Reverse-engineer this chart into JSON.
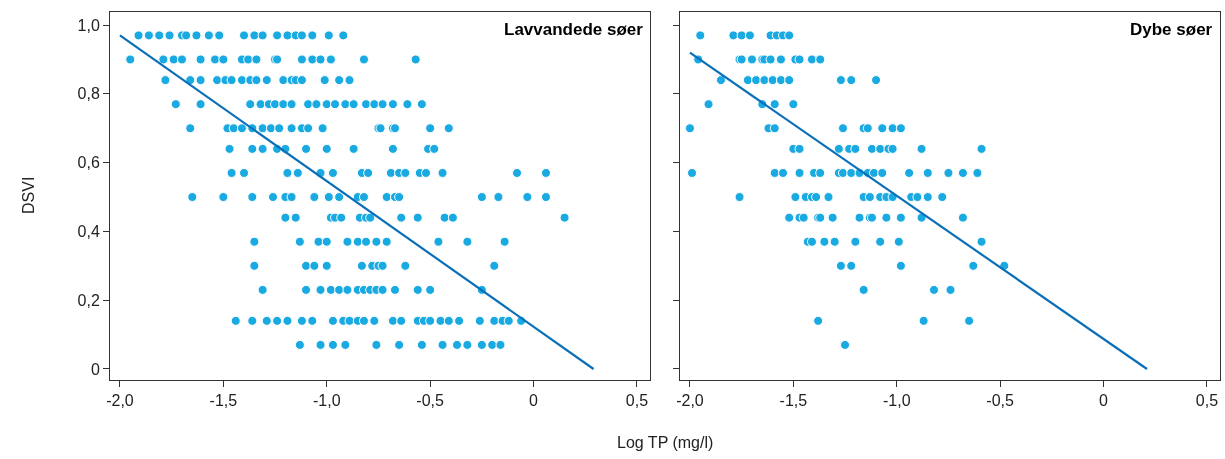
{
  "chart_data": [
    {
      "type": "scatter",
      "title": "Lavvandede søer",
      "xlabel": "Log TP (mg/l)",
      "ylabel": "DSVI",
      "xlim": [
        -2.048,
        0.563
      ],
      "ylim": [
        -0.032,
        1.038
      ],
      "xticks": [
        {
          "value": -2.0,
          "label": "-2,0"
        },
        {
          "value": -1.5,
          "label": "-1,5"
        },
        {
          "value": -1.0,
          "label": "-1,0"
        },
        {
          "value": -0.5,
          "label": "-0,5"
        },
        0,
        {
          "value": 0.5,
          "label": "0,5"
        }
      ],
      "yticks": [
        0,
        {
          "value": 0.2,
          "label": "0,2"
        },
        {
          "value": 0.4,
          "label": "0,4"
        },
        {
          "value": 0.6,
          "label": "0,6"
        },
        {
          "value": 0.8,
          "label": "0,8"
        },
        {
          "value": 1.0,
          "label": "1,0"
        }
      ],
      "series": [
        {
          "marker": "circle",
          "color": "#1aaae2",
          "x": [
            -1.91,
            -1.86,
            -1.81,
            -1.76,
            -1.7,
            -1.68,
            -1.63,
            -1.57,
            -1.52,
            -1.4,
            -1.35,
            -1.31,
            -1.24,
            -1.19,
            -1.15,
            -1.12,
            -1.07,
            -0.99,
            -0.92,
            -1.95,
            -1.79,
            -1.74,
            -1.7,
            -1.61,
            -1.54,
            -1.5,
            -1.41,
            -1.38,
            -1.34,
            -1.25,
            -1.24,
            -1.12,
            -1.07,
            -1.03,
            -0.98,
            -0.82,
            -0.57,
            -1.78,
            -1.66,
            -1.61,
            -1.53,
            -1.49,
            -1.46,
            -1.41,
            -1.37,
            -1.34,
            -1.29,
            -1.21,
            -1.17,
            -1.15,
            -1.12,
            -1.01,
            -0.94,
            -0.89,
            -1.73,
            -1.61,
            -1.37,
            -1.32,
            -1.28,
            -1.25,
            -1.21,
            -1.17,
            -1.09,
            -1.05,
            -1.0,
            -0.96,
            -0.91,
            -0.87,
            -0.81,
            -0.77,
            -0.73,
            -0.68,
            -0.61,
            -0.54,
            -1.66,
            -1.48,
            -1.45,
            -1.41,
            -1.36,
            -1.31,
            -1.27,
            -1.23,
            -1.17,
            -1.12,
            -1.09,
            -1.02,
            -0.75,
            -0.74,
            -0.68,
            -0.67,
            -0.5,
            -0.41,
            -1.47,
            -1.36,
            -1.31,
            -1.24,
            -1.2,
            -1.1,
            -1.0,
            -0.87,
            -0.68,
            -0.51,
            -0.48,
            -1.46,
            -1.4,
            -1.19,
            -1.14,
            -1.03,
            -0.97,
            -0.83,
            -0.8,
            -0.69,
            -0.65,
            -0.62,
            -0.55,
            -0.52,
            -0.44,
            -0.08,
            0.06,
            -1.65,
            -1.5,
            -1.36,
            -1.26,
            -1.2,
            -1.17,
            -1.06,
            -0.99,
            -0.94,
            -0.85,
            -0.82,
            -0.71,
            -0.67,
            -0.65,
            -0.25,
            -0.17,
            -0.03,
            0.06,
            -1.2,
            -1.15,
            -0.98,
            -0.96,
            -0.93,
            -0.84,
            -0.81,
            -0.79,
            -0.64,
            -0.56,
            -0.43,
            -0.39,
            0.15,
            -1.35,
            -1.13,
            -1.04,
            -1.0,
            -0.9,
            -0.85,
            -0.81,
            -0.76,
            -0.71,
            -0.46,
            -0.32,
            -0.14,
            -1.35,
            -1.1,
            -1.06,
            -1.0,
            -0.83,
            -0.78,
            -0.75,
            -0.73,
            -0.62,
            -0.19,
            -1.31,
            -1.1,
            -1.03,
            -0.98,
            -0.94,
            -0.9,
            -0.85,
            -0.82,
            -0.79,
            -0.76,
            -0.73,
            -0.67,
            -0.56,
            -0.5,
            -0.25,
            -1.44,
            -1.36,
            -1.29,
            -1.24,
            -1.19,
            -1.12,
            -1.07,
            -0.97,
            -0.92,
            -0.89,
            -0.85,
            -0.82,
            -0.77,
            -0.68,
            -0.64,
            -0.56,
            -0.53,
            -0.5,
            -0.45,
            -0.41,
            -0.36,
            -0.26,
            -0.19,
            -0.15,
            -0.12,
            -0.06,
            -1.13,
            -1.03,
            -0.97,
            -0.91,
            -0.76,
            -0.65,
            -0.54,
            -0.44,
            -0.37,
            -0.32,
            -0.25,
            -0.2,
            -0.16
          ],
          "values": [
            0.97,
            0.97,
            0.97,
            0.97,
            0.97,
            0.97,
            0.97,
            0.97,
            0.97,
            0.97,
            0.97,
            0.97,
            0.97,
            0.97,
            0.97,
            0.97,
            0.97,
            0.97,
            0.97,
            0.9,
            0.9,
            0.9,
            0.9,
            0.9,
            0.9,
            0.9,
            0.9,
            0.9,
            0.9,
            0.9,
            0.9,
            0.9,
            0.9,
            0.9,
            0.9,
            0.9,
            0.9,
            0.84,
            0.84,
            0.84,
            0.84,
            0.84,
            0.84,
            0.84,
            0.84,
            0.84,
            0.84,
            0.84,
            0.84,
            0.84,
            0.84,
            0.84,
            0.84,
            0.84,
            0.77,
            0.77,
            0.77,
            0.77,
            0.77,
            0.77,
            0.77,
            0.77,
            0.77,
            0.77,
            0.77,
            0.77,
            0.77,
            0.77,
            0.77,
            0.77,
            0.77,
            0.77,
            0.77,
            0.77,
            0.7,
            0.7,
            0.7,
            0.7,
            0.7,
            0.7,
            0.7,
            0.7,
            0.7,
            0.7,
            0.7,
            0.7,
            0.7,
            0.7,
            0.7,
            0.7,
            0.7,
            0.7,
            0.64,
            0.64,
            0.64,
            0.64,
            0.64,
            0.64,
            0.64,
            0.64,
            0.64,
            0.64,
            0.64,
            0.57,
            0.57,
            0.57,
            0.57,
            0.57,
            0.57,
            0.57,
            0.57,
            0.57,
            0.57,
            0.57,
            0.57,
            0.57,
            0.57,
            0.57,
            0.57,
            0.5,
            0.5,
            0.5,
            0.5,
            0.5,
            0.5,
            0.5,
            0.5,
            0.5,
            0.5,
            0.5,
            0.5,
            0.5,
            0.5,
            0.5,
            0.5,
            0.5,
            0.5,
            0.44,
            0.44,
            0.44,
            0.44,
            0.44,
            0.44,
            0.44,
            0.44,
            0.44,
            0.44,
            0.44,
            0.44,
            0.44,
            0.37,
            0.37,
            0.37,
            0.37,
            0.37,
            0.37,
            0.37,
            0.37,
            0.37,
            0.37,
            0.37,
            0.37,
            0.3,
            0.3,
            0.3,
            0.3,
            0.3,
            0.3,
            0.3,
            0.3,
            0.3,
            0.3,
            0.23,
            0.23,
            0.23,
            0.23,
            0.23,
            0.23,
            0.23,
            0.23,
            0.23,
            0.23,
            0.23,
            0.23,
            0.23,
            0.23,
            0.23,
            0.14,
            0.14,
            0.14,
            0.14,
            0.14,
            0.14,
            0.14,
            0.14,
            0.14,
            0.14,
            0.14,
            0.14,
            0.14,
            0.14,
            0.14,
            0.14,
            0.14,
            0.14,
            0.14,
            0.14,
            0.14,
            0.14,
            0.14,
            0.14,
            0.14,
            0.14,
            0.07,
            0.07,
            0.07,
            0.07,
            0.07,
            0.07,
            0.07,
            0.07,
            0.07,
            0.07,
            0.07,
            0.07,
            0.07
          ]
        },
        {
          "type": "line",
          "color": "#0a6fb8",
          "x": [
            -2.0,
            0.29
          ],
          "values": [
            0.97,
            0
          ]
        }
      ]
    },
    {
      "type": "scatter",
      "title": "Dybe søer",
      "tick_labels": "x",
      "xlim": [
        -2.048,
        0.563
      ],
      "ylim": [
        -0.032,
        1.038
      ],
      "xticks": [
        {
          "value": -2.0,
          "label": "-2,0"
        },
        {
          "value": -1.5,
          "label": "-1,5"
        },
        {
          "value": -1.0,
          "label": "-1,0"
        },
        {
          "value": -0.5,
          "label": "-0,5"
        },
        0,
        {
          "value": 0.5,
          "label": "0,5"
        }
      ],
      "yticks": [
        {
          "value": 0,
          "label": null
        },
        {
          "value": 0.2,
          "label": null
        },
        {
          "value": 0.4,
          "label": null
        },
        {
          "value": 0.6,
          "label": null
        },
        {
          "value": 0.8,
          "label": null
        },
        {
          "value": 1.0,
          "label": null
        }
      ],
      "series": [
        {
          "marker": "circle",
          "color": "#1aaae2",
          "x": [
            -1.95,
            -1.79,
            -1.75,
            -1.71,
            -1.61,
            -1.58,
            -1.55,
            -1.52,
            -1.96,
            -1.76,
            -1.75,
            -1.7,
            -1.65,
            -1.64,
            -1.61,
            -1.56,
            -1.49,
            -1.47,
            -1.41,
            -1.37,
            -1.85,
            -1.72,
            -1.68,
            -1.64,
            -1.6,
            -1.56,
            -1.52,
            -1.27,
            -1.22,
            -1.1,
            -1.91,
            -1.65,
            -1.59,
            -1.5,
            -2.0,
            -1.62,
            -1.59,
            -1.26,
            -1.16,
            -1.14,
            -1.07,
            -1.02,
            -0.98,
            -1.5,
            -1.47,
            -1.28,
            -1.23,
            -1.2,
            -1.12,
            -1.08,
            -1.04,
            -1.02,
            -0.88,
            -0.59,
            -1.99,
            -1.59,
            -1.55,
            -1.47,
            -1.4,
            -1.37,
            -1.28,
            -1.26,
            -1.22,
            -1.18,
            -1.14,
            -1.11,
            -1.07,
            -0.94,
            -0.85,
            -0.75,
            -0.68,
            -0.61,
            -1.76,
            -1.49,
            -1.44,
            -1.41,
            -1.39,
            -1.33,
            -1.16,
            -1.13,
            -1.08,
            -1.05,
            -1.02,
            -0.93,
            -0.9,
            -0.85,
            -0.78,
            -1.52,
            -1.47,
            -1.45,
            -1.38,
            -1.37,
            -1.31,
            -1.18,
            -1.13,
            -1.12,
            -1.05,
            -0.98,
            -0.88,
            -0.68,
            -1.43,
            -1.41,
            -1.35,
            -1.3,
            -1.2,
            -1.08,
            -0.99,
            -0.59,
            -1.27,
            -1.22,
            -0.98,
            -0.63,
            -0.48,
            -1.16,
            -0.82,
            -0.74,
            -1.38,
            -0.87,
            -0.65,
            -1.25
          ],
          "values": [
            0.97,
            0.97,
            0.97,
            0.97,
            0.97,
            0.97,
            0.97,
            0.97,
            0.9,
            0.9,
            0.9,
            0.9,
            0.9,
            0.9,
            0.9,
            0.9,
            0.9,
            0.9,
            0.9,
            0.9,
            0.84,
            0.84,
            0.84,
            0.84,
            0.84,
            0.84,
            0.84,
            0.84,
            0.84,
            0.84,
            0.77,
            0.77,
            0.77,
            0.77,
            0.7,
            0.7,
            0.7,
            0.7,
            0.7,
            0.7,
            0.7,
            0.7,
            0.7,
            0.64,
            0.64,
            0.64,
            0.64,
            0.64,
            0.64,
            0.64,
            0.64,
            0.64,
            0.64,
            0.64,
            0.57,
            0.57,
            0.57,
            0.57,
            0.57,
            0.57,
            0.57,
            0.57,
            0.57,
            0.57,
            0.57,
            0.57,
            0.57,
            0.57,
            0.57,
            0.57,
            0.57,
            0.57,
            0.5,
            0.5,
            0.5,
            0.5,
            0.5,
            0.5,
            0.5,
            0.5,
            0.5,
            0.5,
            0.5,
            0.5,
            0.5,
            0.5,
            0.5,
            0.44,
            0.44,
            0.44,
            0.44,
            0.44,
            0.44,
            0.44,
            0.44,
            0.44,
            0.44,
            0.44,
            0.44,
            0.44,
            0.37,
            0.37,
            0.37,
            0.37,
            0.37,
            0.37,
            0.37,
            0.37,
            0.3,
            0.3,
            0.3,
            0.3,
            0.3,
            0.23,
            0.23,
            0.23,
            0.14,
            0.14,
            0.14,
            0.07
          ]
        },
        {
          "type": "line",
          "color": "#0a6fb8",
          "x": [
            -2.0,
            0.21
          ],
          "values": [
            0.92,
            0
          ]
        }
      ]
    }
  ]
}
